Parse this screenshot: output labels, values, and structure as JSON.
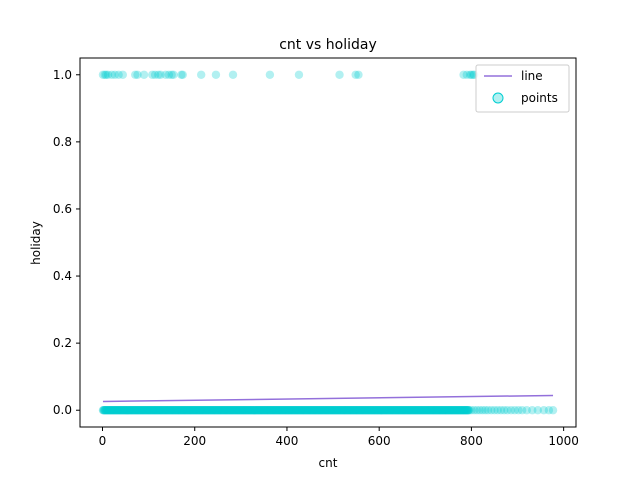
{
  "chart_data": {
    "type": "scatter",
    "title": "cnt vs holiday",
    "xlabel": "cnt",
    "ylabel": "holiday",
    "xlim": [
      -48.8,
      1026.8
    ],
    "ylim": [
      -0.05,
      1.05
    ],
    "x_ticks": [
      0,
      200,
      400,
      600,
      800,
      1000
    ],
    "x_tick_labels": [
      "0",
      "200",
      "400",
      "600",
      "800",
      "1000"
    ],
    "y_ticks": [
      0.0,
      0.2,
      0.4,
      0.6,
      0.8,
      1.0
    ],
    "y_tick_labels": [
      "0.0",
      "0.2",
      "0.4",
      "0.6",
      "0.8",
      "1.0"
    ],
    "grid": false,
    "legend_position": "top-right",
    "colors": {
      "line": "#9370db",
      "points": "#00ced1"
    },
    "series": [
      {
        "name": "line",
        "kind": "line",
        "x": [
          1,
          977
        ],
        "y": [
          0.026,
          0.044
        ]
      },
      {
        "name": "points",
        "kind": "scatter",
        "holiday_1_cnt": [
          1,
          5,
          8,
          12,
          20,
          27,
          35,
          44,
          71,
          76,
          90,
          108,
          114,
          121,
          126,
          137,
          144,
          150,
          154,
          171,
          174,
          214,
          246,
          283,
          363,
          426,
          514,
          549,
          555,
          783,
          790,
          797,
          800,
          804,
          806
        ],
        "holiday_0_cnt_dense_range": [
          1,
          795
        ],
        "holiday_0_cnt_sparse": [
          800,
          806,
          812,
          818,
          824,
          830,
          836,
          843,
          850,
          857,
          864,
          871,
          878,
          886,
          894,
          902,
          910,
          920,
          932,
          944,
          957,
          968,
          977
        ]
      }
    ]
  }
}
